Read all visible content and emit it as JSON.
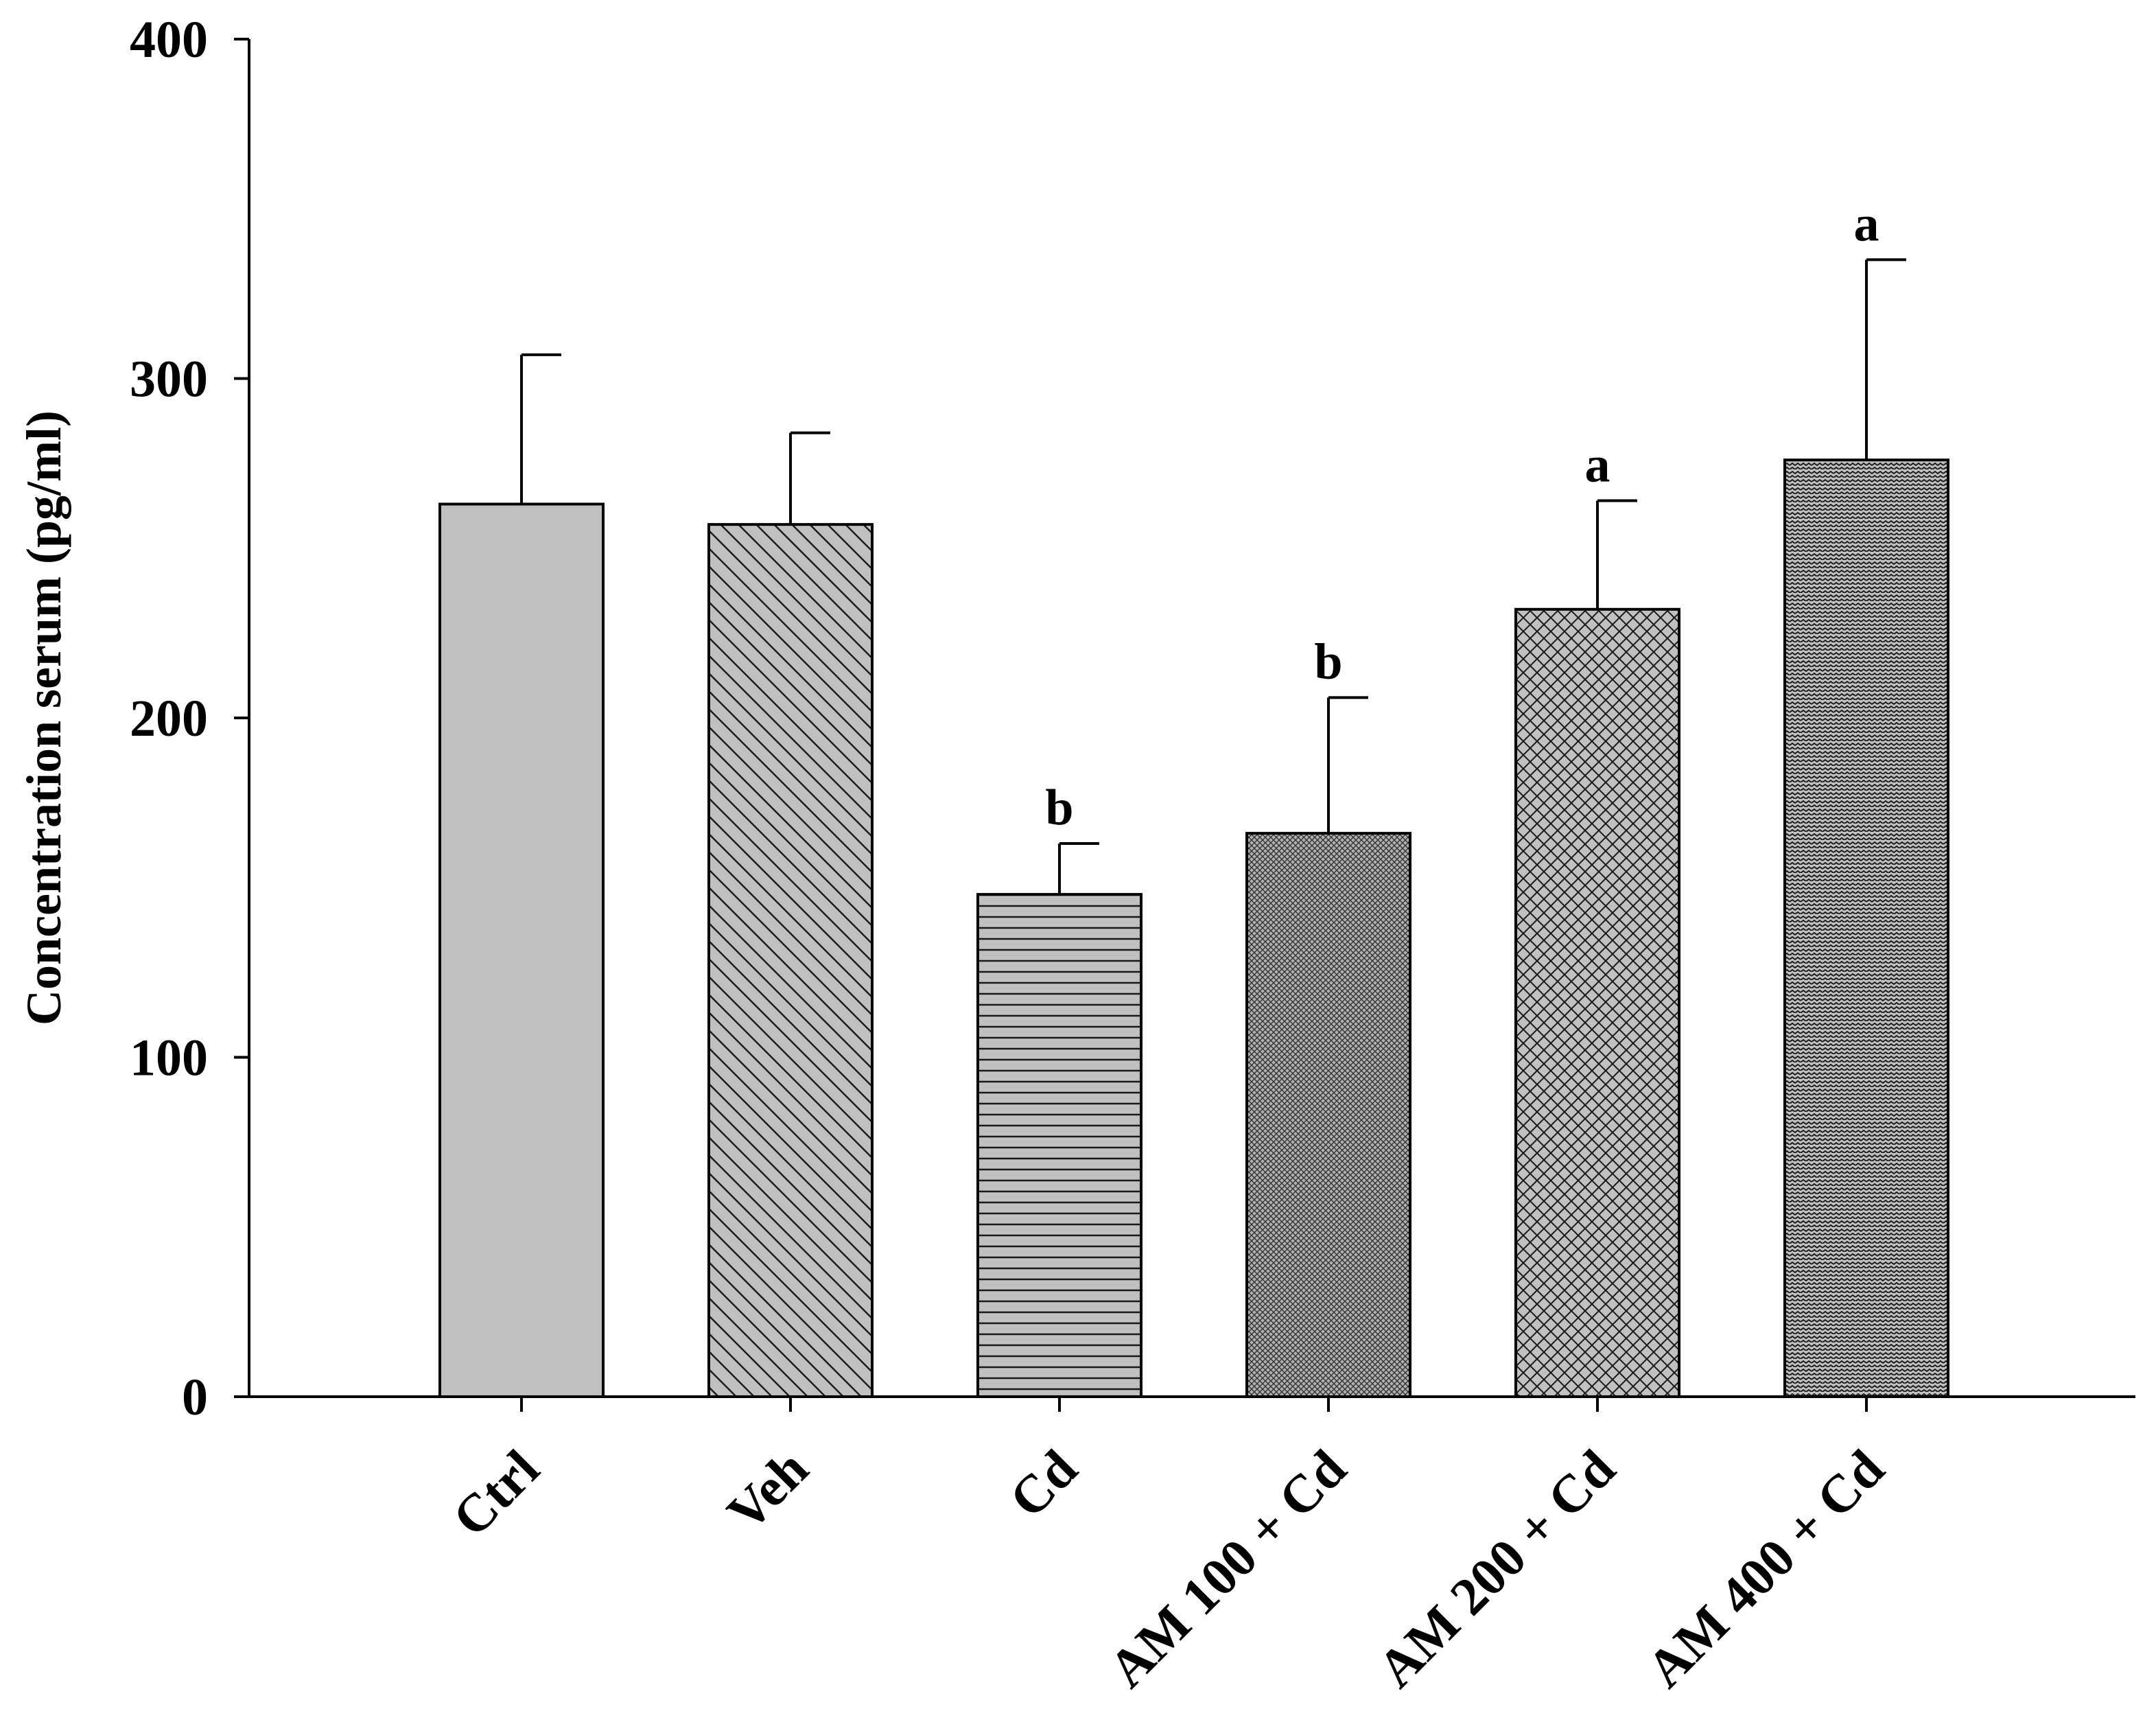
{
  "chart_data": {
    "type": "bar",
    "ylabel": "Concentration serum (pg/ml)",
    "xlabel": "",
    "ylim": [
      0,
      400
    ],
    "yticks": [
      0,
      100,
      200,
      300,
      400
    ],
    "grid": false,
    "categories": [
      "Ctrl",
      "Veh",
      "Cd",
      "AM 100 + Cd",
      "AM 200 + Cd",
      "AM 400 + Cd"
    ],
    "series": [
      {
        "values": [
          263,
          257,
          148,
          166,
          232,
          276
        ],
        "error": [
          44,
          27,
          15,
          40,
          32,
          59
        ],
        "annotations": [
          "",
          "",
          "b",
          "b",
          "a",
          "a"
        ],
        "patterns": [
          "solid",
          "diagonal",
          "horizontal",
          "fine-dots",
          "crosshatch",
          "wave"
        ],
        "fill_color": "#c0c0c0"
      }
    ]
  }
}
